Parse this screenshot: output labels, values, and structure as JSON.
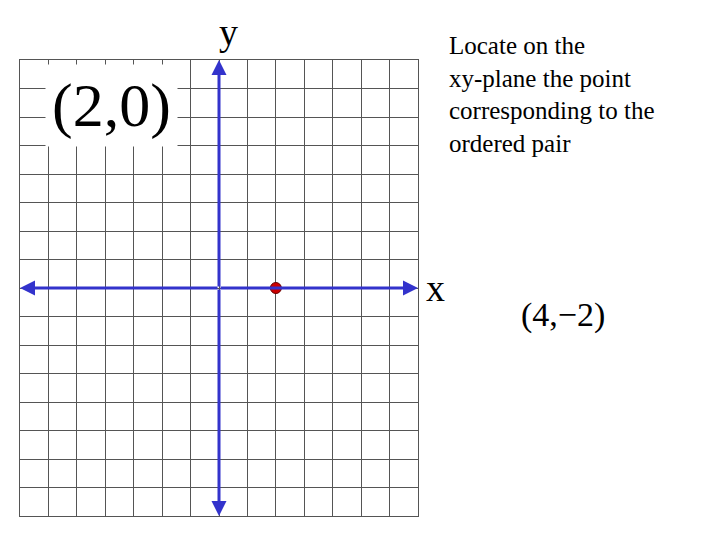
{
  "chart_data": {
    "type": "scatter",
    "title": "Locate on the\nxy-plane the point\ncorresponding to the\nordered pair",
    "xlabel": "x",
    "ylabel": "y",
    "x": [
      2
    ],
    "values": [
      0
    ],
    "color": "#cc0000",
    "marker": "circle",
    "xlim": [
      -7,
      7
    ],
    "ylim": [
      -8,
      8
    ],
    "xticks": [
      -7,
      -6,
      -5,
      -4,
      -3,
      -2,
      -1,
      0,
      1,
      2,
      3,
      4,
      5,
      6,
      7
    ],
    "yticks": [
      -8,
      -7,
      -6,
      -5,
      -4,
      -3,
      -2,
      -1,
      0,
      1,
      2,
      3,
      4,
      5,
      6,
      7,
      8
    ],
    "grid": true,
    "tick_labels": false,
    "annotations": [
      "(2,0)",
      "(4,−2)"
    ]
  }
}
